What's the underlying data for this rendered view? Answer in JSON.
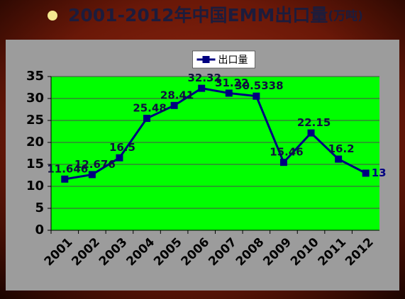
{
  "chart_data": {
    "type": "line",
    "title": "2001-2012年中国EMM出口量",
    "title_unit": "(万吨)",
    "categories": [
      "2001",
      "2002",
      "2003",
      "2004",
      "2005",
      "2006",
      "2007",
      "2008",
      "2009",
      "2010",
      "2011",
      "2012"
    ],
    "series": [
      {
        "name": "出口量",
        "color": "#000080",
        "values": [
          11.646,
          12.676,
          16.5,
          25.48,
          28.41,
          32.32,
          31.22,
          30.5338,
          15.46,
          22.15,
          16.2,
          13
        ]
      }
    ],
    "ylim": [
      0,
      35
    ],
    "yticks": [
      0,
      5,
      10,
      15,
      20,
      25,
      30,
      35
    ],
    "grid": true,
    "legend": "top"
  }
}
